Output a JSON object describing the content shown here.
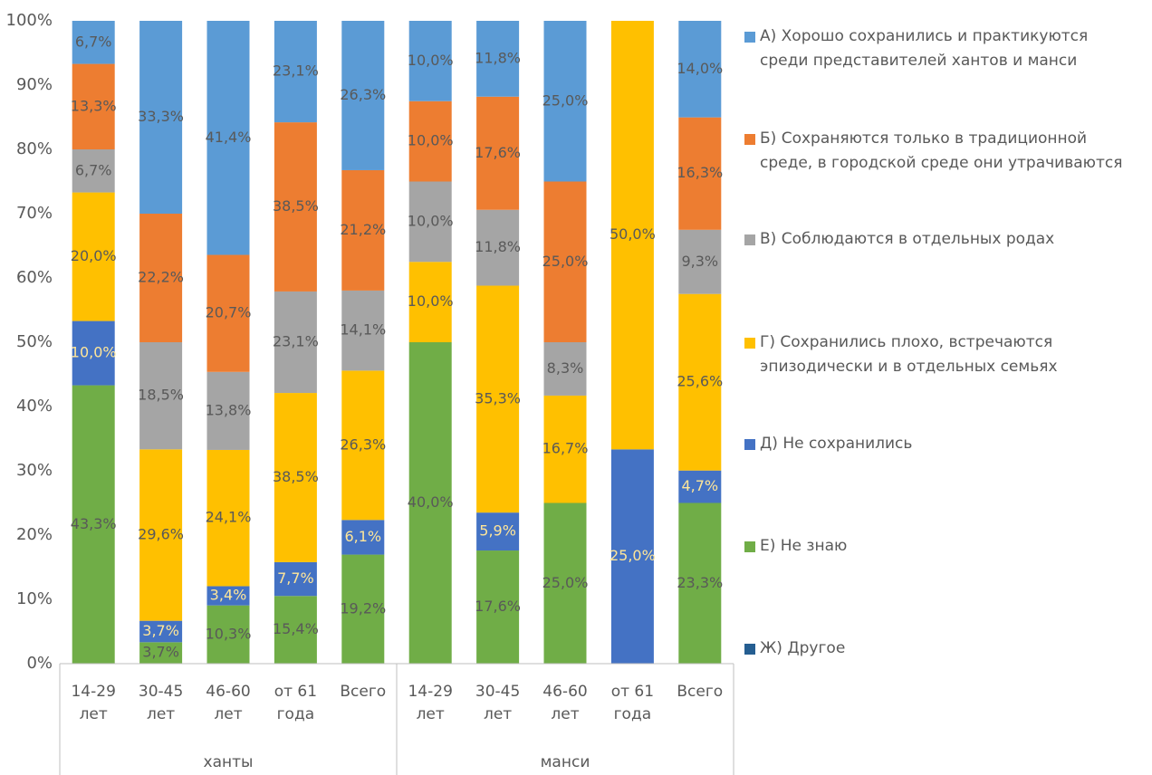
{
  "chart_data": {
    "type": "stacked_percent_bar",
    "groups": [
      "ханты",
      "манси"
    ],
    "categories": [
      "14-29 лет",
      "30-45 лет",
      "46-60 лет",
      "от 61 года",
      "Всего",
      "14-29 лет",
      "30-45 лет",
      "46-60 лет",
      "от 61 года",
      "Всего"
    ],
    "ylim": [
      0,
      100
    ],
    "yticks": [
      {
        "value": 0,
        "label": "0%"
      },
      {
        "value": 10,
        "label": "10%"
      },
      {
        "value": 20,
        "label": "20%"
      },
      {
        "value": 30,
        "label": "30%"
      },
      {
        "value": 40,
        "label": "40%"
      },
      {
        "value": 50,
        "label": "50%"
      },
      {
        "value": 60,
        "label": "60%"
      },
      {
        "value": 70,
        "label": "70%"
      },
      {
        "value": 80,
        "label": "80%"
      },
      {
        "value": 90,
        "label": "90%"
      },
      {
        "value": 100,
        "label": "100%"
      }
    ],
    "grid": false,
    "legend": "right",
    "series": [
      {
        "name": "А) Хорошо сохранились и практикуются среди представителей хантов и манси",
        "color": "#5b9bd5",
        "label_color": "#595959",
        "values": [
          6.7,
          33.3,
          41.4,
          23.1,
          26.3,
          10.0,
          11.8,
          25.0,
          null,
          14.0
        ],
        "value_labels": [
          "6,7%",
          "33,3%",
          "41,4%",
          "23,1%",
          "26,3%",
          "10,0%",
          "11,8%",
          "25,0%",
          null,
          "14,0%"
        ]
      },
      {
        "name": "Б) Сохраняются только в традиционной среде, в городской среде они утрачиваются",
        "color": "#ed7d31",
        "label_color": "#595959",
        "values": [
          13.3,
          22.2,
          20.7,
          38.5,
          21.2,
          10.0,
          17.6,
          25.0,
          null,
          16.3
        ],
        "value_labels": [
          "13,3%",
          "22,2%",
          "20,7%",
          "38,5%",
          "21,2%",
          "10,0%",
          "17,6%",
          "25,0%",
          null,
          "16,3%"
        ]
      },
      {
        "name": "В) Соблюдаются в отдельных родах",
        "color": "#a5a5a5",
        "label_color": "#595959",
        "values": [
          6.7,
          18.5,
          13.8,
          23.1,
          14.1,
          10.0,
          11.8,
          8.3,
          null,
          9.3
        ],
        "value_labels": [
          "6,7%",
          "18,5%",
          "13,8%",
          "23,1%",
          "14,1%",
          "10,0%",
          "11,8%",
          "8,3%",
          null,
          "9,3%"
        ]
      },
      {
        "name": "Г) Сохранились плохо, встречаются эпизодически и в отдельных семьях",
        "color": "#ffc000",
        "label_color": "#595959",
        "values": [
          20.0,
          29.6,
          24.1,
          38.5,
          26.3,
          10.0,
          35.3,
          16.7,
          50.0,
          25.6
        ],
        "value_labels": [
          "20,0%",
          "29,6%",
          "24,1%",
          "38,5%",
          "26,3%",
          "10,0%",
          "35,3%",
          "16,7%",
          "50,0%",
          "25,6%"
        ]
      },
      {
        "name": "Д) Не сохранились",
        "color": "#4472c4",
        "label_color": "#ffe699",
        "values": [
          10.0,
          3.7,
          3.4,
          7.7,
          6.1,
          null,
          5.9,
          null,
          25.0,
          4.7
        ],
        "value_labels": [
          "10,0%",
          "3,7%",
          "3,4%",
          "7,7%",
          "6,1%",
          null,
          "5,9%",
          null,
          "25,0%",
          "4,7%"
        ]
      },
      {
        "name": "Е) Не знаю",
        "color": "#70ad47",
        "label_color": "#595959",
        "values": [
          43.3,
          3.7,
          10.3,
          15.4,
          19.2,
          40.0,
          17.6,
          25.0,
          null,
          23.3
        ],
        "value_labels": [
          "43,3%",
          "3,7%",
          "10,3%",
          "15,4%",
          "19,2%",
          "40,0%",
          "17,6%",
          "25,0%",
          null,
          "23,3%"
        ]
      },
      {
        "name": "Ж) Другое",
        "color": "#255e91",
        "label_color": "#595959",
        "values": [
          null,
          null,
          null,
          null,
          null,
          null,
          null,
          null,
          null,
          null
        ],
        "value_labels": [
          null,
          null,
          null,
          null,
          null,
          null,
          null,
          null,
          null,
          null
        ]
      }
    ]
  }
}
